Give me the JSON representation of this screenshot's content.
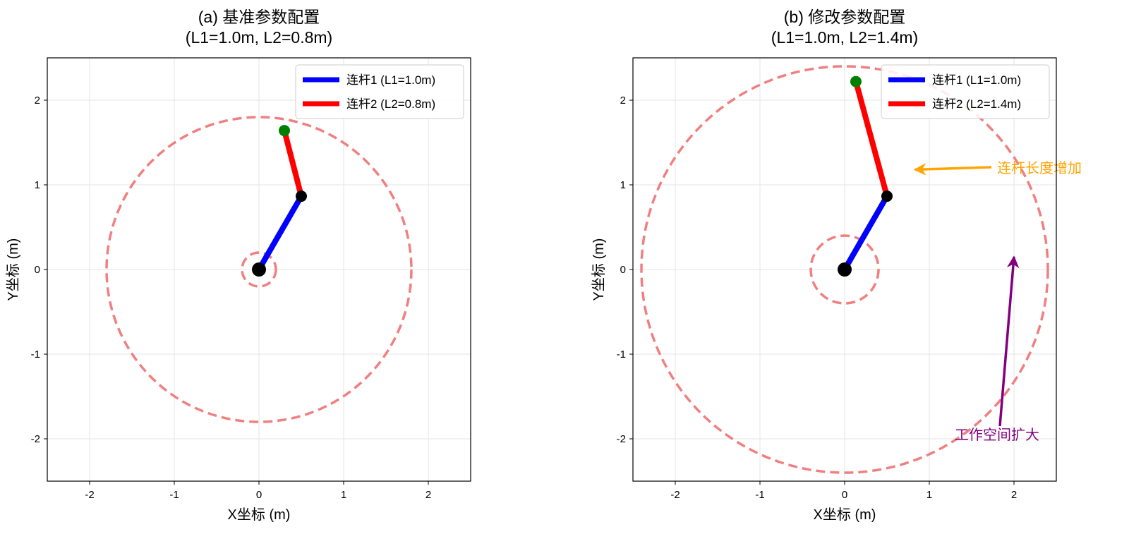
{
  "chart_data": [
    {
      "type": "line",
      "title_line1": "(a) 基准参数配置",
      "title_line2": "(L1=1.0m, L2=0.8m)",
      "xlabel": "X坐标 (m)",
      "ylabel": "Y坐标 (m)",
      "xlim": [
        -2.5,
        2.5
      ],
      "ylim": [
        -2.5,
        2.5
      ],
      "xticks": [
        -2,
        -1,
        0,
        1,
        2
      ],
      "yticks": [
        -2,
        -1,
        0,
        1,
        2
      ],
      "grid": true,
      "base": [
        0,
        0
      ],
      "joint": [
        0.5,
        0.866
      ],
      "end": [
        0.3,
        1.641
      ],
      "workspace_outer_radius": 1.8,
      "workspace_inner_radius": 0.2,
      "legend_position": "top-right",
      "legend": [
        "连杆1 (L1=1.0m)",
        "连杆2 (L2=0.8m)"
      ],
      "annotations": []
    },
    {
      "type": "line",
      "title_line1": "(b) 修改参数配置",
      "title_line2": "(L1=1.0m, L2=1.4m)",
      "xlabel": "X坐标 (m)",
      "ylabel": "Y坐标 (m)",
      "xlim": [
        -2.5,
        2.5
      ],
      "ylim": [
        -2.5,
        2.5
      ],
      "xticks": [
        -2,
        -1,
        0,
        1,
        2
      ],
      "yticks": [
        -2,
        -1,
        0,
        1,
        2
      ],
      "grid": true,
      "base": [
        0,
        0
      ],
      "joint": [
        0.5,
        0.866
      ],
      "end": [
        0.133,
        2.22
      ],
      "workspace_outer_radius": 2.4,
      "workspace_inner_radius": 0.4,
      "legend_position": "top-right",
      "legend": [
        "连杆1 (L1=1.0m)",
        "连杆2 (L2=1.4m)"
      ],
      "annotations": [
        {
          "text": "连杆长度增加",
          "text_xy": [
            1.8,
            1.2
          ],
          "arrow_to": [
            0.83,
            1.18
          ],
          "align": "start",
          "color": "#FFA500"
        },
        {
          "text": "工作空间扩大",
          "text_xy": [
            1.8,
            -1.95
          ],
          "arrow_to": [
            2.0,
            0.15
          ],
          "align": "middle",
          "color": "#800080"
        }
      ]
    }
  ],
  "colors": {
    "link1": "#0000FF",
    "link2": "#FF0000",
    "end": "#008000",
    "joint": "#000000",
    "workspace": "#F08080"
  }
}
